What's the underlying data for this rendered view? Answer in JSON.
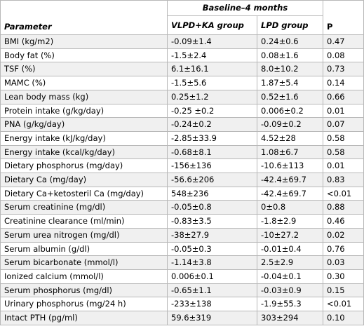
{
  "table": {
    "header": {
      "parameter": "Parameter",
      "group_span": "Baseline–4 months",
      "vlpd": "VLPD+KA group",
      "lpd": "LPD group",
      "p": "P"
    },
    "rows": [
      {
        "parameter": "BMI (kg/m2)",
        "vlpd": "-0.09±1.4",
        "lpd": "0.24±0.6",
        "p": "0.47"
      },
      {
        "parameter": "Body fat (%)",
        "vlpd": "-1.5±2.4",
        "lpd": "0.08±1.6",
        "p": "0.08"
      },
      {
        "parameter": "TSF (%)",
        "vlpd": "6.1±16.1",
        "lpd": "8.0±10.2",
        "p": "0.73"
      },
      {
        "parameter": "MAMC (%)",
        "vlpd": "-1.5±5.6",
        "lpd": "1.87±5.4",
        "p": "0.14"
      },
      {
        "parameter": "Lean body mass (kg)",
        "vlpd": "0.25±1.2",
        "lpd": "0.52±1.6",
        "p": "0.66"
      },
      {
        "parameter": "Protein intake (g/kg/day)",
        "vlpd": "-0.25 ±0.2",
        "lpd": "0.006±0.2",
        "p": "0.01"
      },
      {
        "parameter": "PNA (g/kg/day)",
        "vlpd": "-0.24±0.2",
        "lpd": "-0.09±0.2",
        "p": "0.07"
      },
      {
        "parameter": "Energy intake (kJ/kg/day)",
        "vlpd": "-2.85±33.9",
        "lpd": "4.52±28",
        "p": "0.58"
      },
      {
        "parameter": "Energy intake (kcal/kg/day)",
        "vlpd": "-0.68±8.1",
        "lpd": "1.08±6.7",
        "p": "0.58"
      },
      {
        "parameter": "Dietary phosphorus (mg/day)",
        "vlpd": "-156±136",
        "lpd": "-10.6±113",
        "p": "0.01"
      },
      {
        "parameter": "Dietary Ca (mg/day)",
        "vlpd": "-56.6±206",
        "lpd": "-42.4±69.7",
        "p": "0.83"
      },
      {
        "parameter": "Dietary Ca+ketosteril Ca (mg/day)",
        "vlpd": "548±236",
        "lpd": "-42.4±69.7",
        "p": "<0.01"
      },
      {
        "parameter": "Serum creatinine (mg/dl)",
        "vlpd": "-0.05±0.8",
        "lpd": "0±0.8",
        "p": "0.88"
      },
      {
        "parameter": "Creatinine clearance (ml/min)",
        "vlpd": "-0.83±3.5",
        "lpd": "-1.8±2.9",
        "p": "0.46"
      },
      {
        "parameter": "Serum urea nitrogen (mg/dl)",
        "vlpd": "-38±27.9",
        "lpd": "-10±27.2",
        "p": "0.02"
      },
      {
        "parameter": "Serum albumin (g/dl)",
        "vlpd": "-0.05±0.3",
        "lpd": "-0.01±0.4",
        "p": "0.76"
      },
      {
        "parameter": "Serum bicarbonate (mmol/l)",
        "vlpd": "-1.14±3.8",
        "lpd": "2.5±2.9",
        "p": "0.03"
      },
      {
        "parameter": "Ionized calcium (mmol/l)",
        "vlpd": "0.006±0.1",
        "lpd": "-0.04±0.1",
        "p": "0.30"
      },
      {
        "parameter": "Serum phosphorus (mg/dl)",
        "vlpd": "-0.65±1.1",
        "lpd": "-0.03±0.9",
        "p": "0.15"
      },
      {
        "parameter": "Urinary phosphorus (mg/24 h)",
        "vlpd": "-233±138",
        "lpd": "-1.9±55.3",
        "p": "<0.01"
      },
      {
        "parameter": "Intact PTH (pg/ml)",
        "vlpd": "59.6±319",
        "lpd": "303±294",
        "p": "0.10"
      }
    ]
  }
}
